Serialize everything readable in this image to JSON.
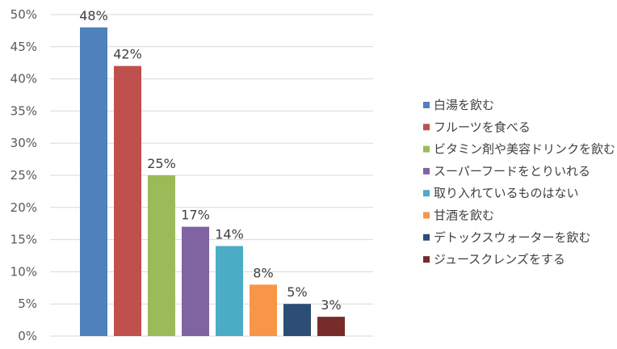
{
  "chart_data": {
    "type": "bar",
    "ylim": [
      0,
      50
    ],
    "yticks": [
      "0%",
      "5%",
      "10%",
      "15%",
      "20%",
      "25%",
      "30%",
      "35%",
      "40%",
      "45%",
      "50%"
    ],
    "grid": true,
    "legend_position": "right",
    "categories": [
      "白湯を飲む",
      "フルーツを食べる",
      "ビタミン剤や美容ドリンクを飲む",
      "スーパーフードをとりいれる",
      "取り入れているものはない",
      "甘酒を飲む",
      "デトックスウォーターを飲む",
      "ジュースクレンズをする"
    ],
    "values": [
      48,
      42,
      25,
      17,
      14,
      8,
      5,
      3
    ],
    "labels": [
      "48%",
      "42%",
      "25%",
      "17%",
      "14%",
      "8%",
      "5%",
      "3%"
    ],
    "colors": [
      "#4f81bd",
      "#c0504d",
      "#9bbb59",
      "#8064a2",
      "#4bacc6",
      "#f79646",
      "#2c4d75",
      "#772c2a"
    ]
  }
}
